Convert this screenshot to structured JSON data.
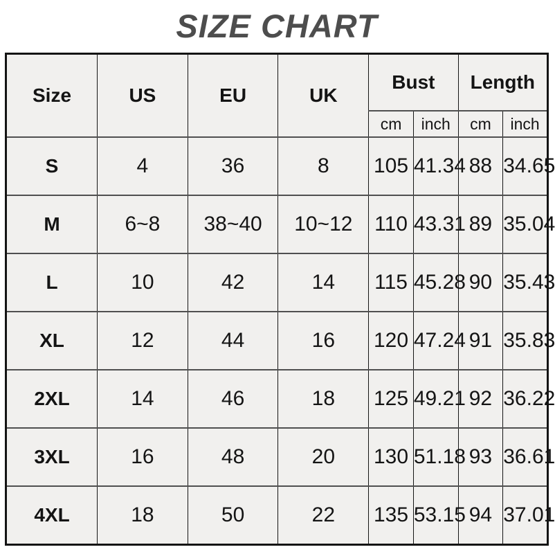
{
  "title": "SIZE CHART",
  "colors": {
    "title_text": "#4d4d4d",
    "cell_background": "#f1f0ee",
    "outer_border": "#141414",
    "row_divider": "#4f4f4f",
    "cell_text": "#141414",
    "page_background": "#ffffff"
  },
  "table": {
    "header": {
      "size": "Size",
      "us": "US",
      "eu": "EU",
      "uk": "UK",
      "bust": "Bust",
      "length": "Length",
      "bust_cm": "cm",
      "bust_inch": "inch",
      "length_cm": "cm",
      "length_inch": "inch"
    },
    "columns": [
      "size",
      "us",
      "eu",
      "uk",
      "bust_cm",
      "bust_inch",
      "length_cm",
      "length_inch"
    ],
    "rows": [
      {
        "size": "S",
        "us": "4",
        "eu": "36",
        "uk": "8",
        "bust_cm": "105",
        "bust_inch": "41.34",
        "length_cm": "88",
        "length_inch": "34.65"
      },
      {
        "size": "M",
        "us": "6~8",
        "eu": "38~40",
        "uk": "10~12",
        "bust_cm": "110",
        "bust_inch": "43.31",
        "length_cm": "89",
        "length_inch": "35.04"
      },
      {
        "size": "L",
        "us": "10",
        "eu": "42",
        "uk": "14",
        "bust_cm": "115",
        "bust_inch": "45.28",
        "length_cm": "90",
        "length_inch": "35.43"
      },
      {
        "size": "XL",
        "us": "12",
        "eu": "44",
        "uk": "16",
        "bust_cm": "120",
        "bust_inch": "47.24",
        "length_cm": "91",
        "length_inch": "35.83"
      },
      {
        "size": "2XL",
        "us": "14",
        "eu": "46",
        "uk": "18",
        "bust_cm": "125",
        "bust_inch": "49.21",
        "length_cm": "92",
        "length_inch": "36.22"
      },
      {
        "size": "3XL",
        "us": "16",
        "eu": "48",
        "uk": "20",
        "bust_cm": "130",
        "bust_inch": "51.18",
        "length_cm": "93",
        "length_inch": "36.61"
      },
      {
        "size": "4XL",
        "us": "18",
        "eu": "50",
        "uk": "22",
        "bust_cm": "135",
        "bust_inch": "53.15",
        "length_cm": "94",
        "length_inch": "37.01"
      }
    ]
  },
  "chart_data": {
    "type": "table",
    "title": "SIZE CHART",
    "columns": [
      "Size",
      "US",
      "EU",
      "UK",
      "Bust cm",
      "Bust inch",
      "Length cm",
      "Length inch"
    ],
    "rows": [
      [
        "S",
        "4",
        "36",
        "8",
        105,
        41.34,
        88,
        34.65
      ],
      [
        "M",
        "6~8",
        "38~40",
        "10~12",
        110,
        43.31,
        89,
        35.04
      ],
      [
        "L",
        "10",
        "42",
        "14",
        115,
        45.28,
        90,
        35.43
      ],
      [
        "XL",
        "12",
        "44",
        "16",
        120,
        47.24,
        91,
        35.83
      ],
      [
        "2XL",
        "14",
        "46",
        "18",
        125,
        49.21,
        92,
        36.22
      ],
      [
        "3XL",
        "16",
        "48",
        "20",
        130,
        51.18,
        93,
        36.61
      ],
      [
        "4XL",
        "18",
        "50",
        "22",
        135,
        53.15,
        94,
        37.01
      ]
    ]
  }
}
